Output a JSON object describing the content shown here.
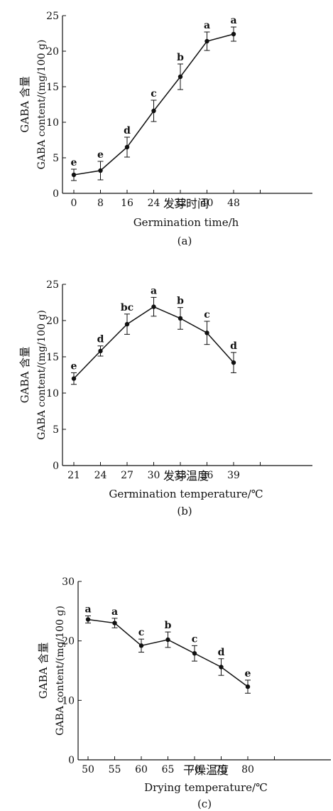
{
  "chart_data": [
    {
      "type": "line",
      "x": [
        0,
        8,
        16,
        24,
        32,
        40,
        48
      ],
      "y": [
        2.6,
        3.2,
        6.5,
        11.6,
        16.4,
        21.4,
        22.4
      ],
      "error": [
        0.8,
        1.3,
        1.4,
        1.5,
        1.8,
        1.3,
        1.0
      ],
      "letters": [
        "e",
        "e",
        "d",
        "c",
        "b",
        "a",
        "a"
      ],
      "ylim": [
        0,
        25
      ],
      "yticks": [
        0,
        5,
        10,
        15,
        20,
        25
      ],
      "ylabel_cn": "GABA 含量",
      "ylabel_en": "GABA  content/(mg/100 g)",
      "xlabel_cn": "发芽时间",
      "xlabel_en": "Germination  time/h",
      "panel": "(a)"
    },
    {
      "type": "line",
      "x": [
        21,
        24,
        27,
        30,
        33,
        36,
        39
      ],
      "y": [
        12.0,
        15.8,
        19.5,
        21.9,
        20.3,
        18.3,
        14.2
      ],
      "error": [
        0.8,
        0.7,
        1.4,
        1.3,
        1.5,
        1.6,
        1.4
      ],
      "letters": [
        "e",
        "d",
        "bc",
        "a",
        "b",
        "c",
        "d"
      ],
      "ylim": [
        0,
        25
      ],
      "yticks": [
        0,
        5,
        10,
        15,
        20,
        25
      ],
      "ylabel_cn": "GABA 含量",
      "ylabel_en": "GABA  content/(mg/100 g)",
      "xlabel_cn": "发芽温度",
      "xlabel_en": "Germination  temperature/℃",
      "panel": "(b)"
    },
    {
      "type": "line",
      "x": [
        50,
        55,
        60,
        65,
        70,
        75,
        80
      ],
      "y": [
        23.6,
        23.0,
        19.2,
        20.2,
        17.9,
        15.6,
        12.3
      ],
      "error": [
        0.6,
        0.8,
        1.1,
        1.3,
        1.3,
        1.4,
        1.1
      ],
      "letters": [
        "a",
        "a",
        "c",
        "b",
        "c",
        "d",
        "e"
      ],
      "ylim": [
        0,
        30
      ],
      "yticks": [
        0,
        10,
        20,
        30
      ],
      "ylabel_cn": "GABA 含量",
      "ylabel_en": "GABA  content/(mg/100 g)",
      "xlabel_cn": "干燥温度",
      "xlabel_en": "Drying  temperature/℃",
      "panel": "(c)"
    }
  ]
}
